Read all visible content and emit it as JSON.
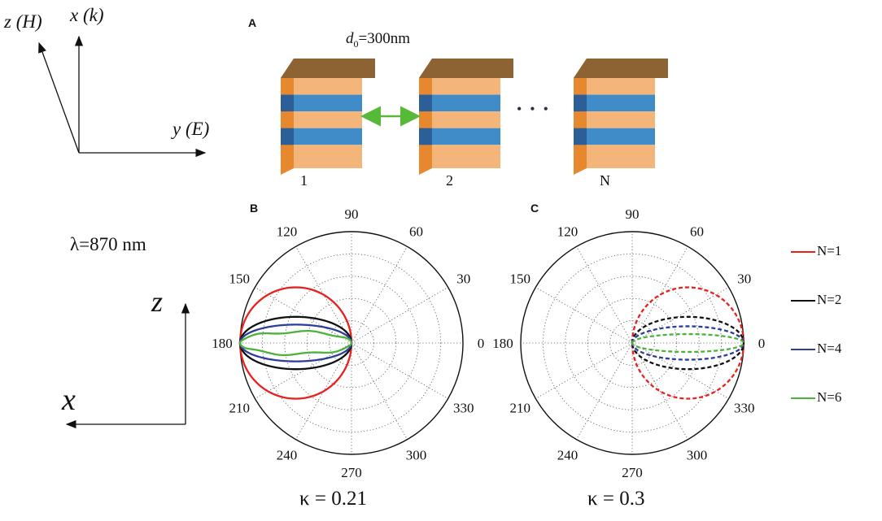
{
  "panels": {
    "a": "A",
    "b": "B",
    "c": "C"
  },
  "axes_top": {
    "z_label": "z (H)",
    "x_label": "x (k)",
    "y_label": "y (E)"
  },
  "axes_side": {
    "z_label": "z",
    "x_label": "x"
  },
  "wavelength": "λ=870 nm",
  "stack": {
    "spacing_label": "d0=300nm",
    "spacing_main": "d",
    "spacing_sub": "0",
    "spacing_rest": "=300nm",
    "labels": [
      "1",
      "2",
      "N"
    ],
    "ellipsis": "•••"
  },
  "colors": {
    "N1": "#e8211d",
    "N2": "#111111",
    "N4": "#2c3e9a",
    "N6": "#4bb23a",
    "arrow": "#58b83a",
    "layer_orange": "#f4b57a",
    "layer_blue": "#3f8cc9",
    "top_face": "#8e6334",
    "side_orange": "#e8882e",
    "side_blue": "#2c5f98"
  },
  "legend": [
    {
      "label": "N=1",
      "color": "#e8211d"
    },
    {
      "label": "N=2",
      "color": "#111111"
    },
    {
      "label": "N=4",
      "color": "#2c3e9a"
    },
    {
      "label": "N=6",
      "color": "#4bb23a"
    }
  ],
  "chart_data": [
    {
      "type": "polar",
      "panel": "B",
      "title": "κ = 0.21",
      "angle_ticks_deg": [
        0,
        30,
        60,
        90,
        120,
        150,
        180,
        210,
        240,
        270,
        300,
        330
      ],
      "radial_range": [
        0,
        1
      ],
      "radial_grid": [
        0.2,
        0.4,
        0.6,
        0.8,
        1.0
      ],
      "line_style": "solid",
      "series": [
        {
          "name": "N=1",
          "model": "circle",
          "center_deg": 180,
          "peak": 1.0,
          "width": 1.0
        },
        {
          "name": "N=2",
          "model": "ellipse",
          "center_deg": 180,
          "peak": 1.0,
          "width": 0.47
        },
        {
          "name": "N=4",
          "model": "ellipse",
          "center_deg": 180,
          "peak": 1.0,
          "width": 0.33
        },
        {
          "name": "N=6",
          "model": "ellipse",
          "center_deg": 180,
          "peak": 1.0,
          "width": 0.2
        }
      ]
    },
    {
      "type": "polar",
      "panel": "C",
      "title": "κ = 0.3",
      "angle_ticks_deg": [
        0,
        30,
        60,
        90,
        120,
        150,
        180,
        210,
        240,
        270,
        300,
        330
      ],
      "radial_range": [
        0,
        1
      ],
      "radial_grid": [
        0.2,
        0.4,
        0.6,
        0.8,
        1.0
      ],
      "line_style": "dashed",
      "series": [
        {
          "name": "N=1",
          "model": "circle",
          "center_deg": 0,
          "peak": 1.0,
          "width": 1.0
        },
        {
          "name": "N=2",
          "model": "ellipse",
          "center_deg": 0,
          "peak": 1.0,
          "width": 0.47
        },
        {
          "name": "N=4",
          "model": "ellipse",
          "center_deg": 0,
          "peak": 1.0,
          "width": 0.3
        },
        {
          "name": "N=6",
          "model": "ellipse",
          "center_deg": 0,
          "peak": 1.0,
          "width": 0.16
        }
      ]
    }
  ]
}
